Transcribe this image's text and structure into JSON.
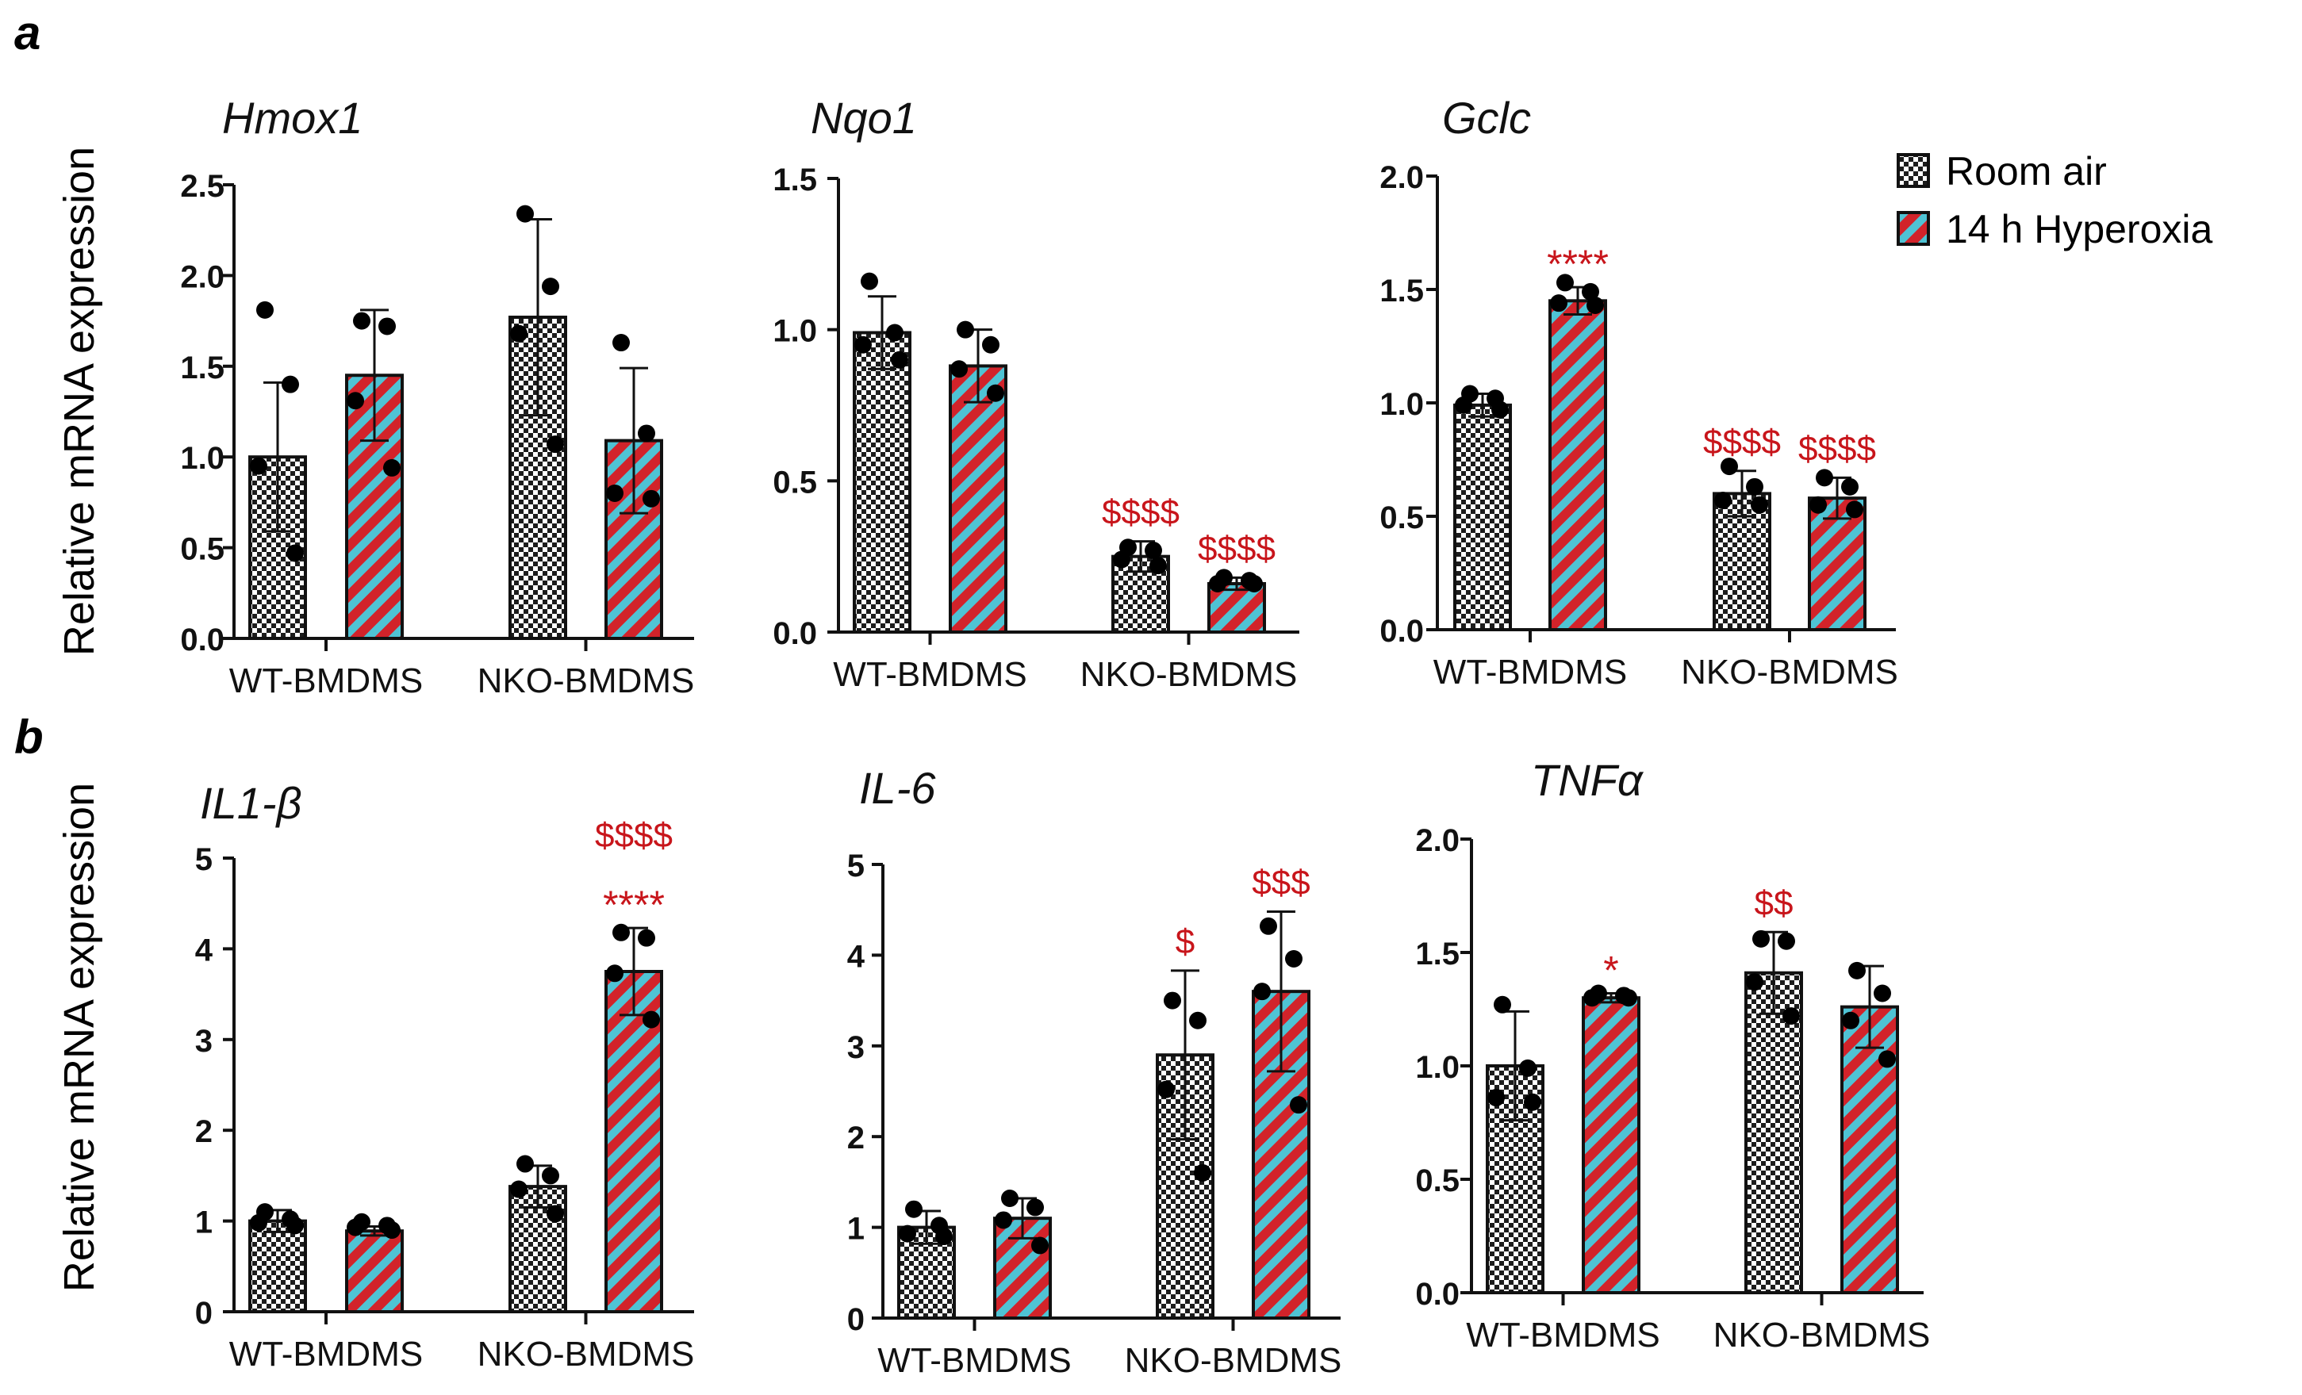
{
  "panel_letters": {
    "a": "a",
    "b": "b"
  },
  "y_axis_label": "Relative mRNA expression",
  "legend": [
    {
      "label": "Room air",
      "pattern": "checker"
    },
    {
      "label": "14 h Hyperoxia",
      "pattern": "stripe"
    }
  ],
  "colors": {
    "checker_dark": "#1c1c1c",
    "checker_light": "#ffffff",
    "stripe_red": "#d2232a",
    "stripe_cyan": "#4fc3d4",
    "annotation_red": "#c8151b",
    "axis": "#111111",
    "dot": "#000000"
  },
  "chart_data": [
    {
      "id": "hmox1",
      "type": "bar",
      "title": "Hmox1",
      "categories": [
        "WT-BMDMS",
        "NKO-BMDMS"
      ],
      "ylim": [
        0,
        2.5
      ],
      "yticks": [
        "0.0",
        "0.5",
        "1.0",
        "1.5",
        "2.0",
        "2.5"
      ],
      "series": [
        {
          "name": "Room air",
          "values": [
            1.0,
            1.77
          ],
          "err": [
            0.41,
            0.54
          ],
          "points": [
            [
              1.81,
              1.4,
              0.95,
              0.47
            ],
            [
              2.34,
              1.94,
              1.68,
              1.07
            ]
          ],
          "annotations": [
            [],
            []
          ]
        },
        {
          "name": "14 h Hyperoxia",
          "values": [
            1.45,
            1.09
          ],
          "err": [
            0.36,
            0.4
          ],
          "points": [
            [
              1.75,
              1.72,
              1.31,
              0.94
            ],
            [
              1.63,
              1.13,
              0.8,
              0.77
            ]
          ],
          "annotations": [
            [],
            []
          ]
        }
      ]
    },
    {
      "id": "nqo1",
      "type": "bar",
      "title": "Nqo1",
      "categories": [
        "WT-BMDMS",
        "NKO-BMDMS"
      ],
      "ylim": [
        0,
        1.5
      ],
      "yticks": [
        "0.0",
        "0.5",
        "1.0",
        "1.5"
      ],
      "series": [
        {
          "name": "Room air",
          "values": [
            0.99,
            0.25
          ],
          "err": [
            0.12,
            0.05
          ],
          "points": [
            [
              1.16,
              0.99,
              0.95,
              0.9
            ],
            [
              0.28,
              0.27,
              0.24,
              0.22
            ]
          ],
          "annotations": [
            [],
            [
              "$$$$"
            ]
          ]
        },
        {
          "name": "14 h Hyperoxia",
          "values": [
            0.88,
            0.16
          ],
          "err": [
            0.12,
            0.02
          ],
          "points": [
            [
              1.0,
              0.95,
              0.87,
              0.79
            ],
            [
              0.18,
              0.17,
              0.16,
              0.16
            ]
          ],
          "annotations": [
            [],
            [
              "$$$$"
            ]
          ]
        }
      ]
    },
    {
      "id": "gclc",
      "type": "bar",
      "title": "Gclc",
      "categories": [
        "WT-BMDMS",
        "NKO-BMDMS"
      ],
      "ylim": [
        0,
        2.0
      ],
      "yticks": [
        "0.0",
        "0.5",
        "1.0",
        "1.5",
        "2.0"
      ],
      "series": [
        {
          "name": "Room air",
          "values": [
            0.99,
            0.6
          ],
          "err": [
            0.05,
            0.1
          ],
          "points": [
            [
              1.04,
              1.02,
              0.99,
              0.97
            ],
            [
              0.72,
              0.63,
              0.57,
              0.55
            ]
          ],
          "annotations": [
            [],
            [
              "$$$$"
            ]
          ]
        },
        {
          "name": "14 h Hyperoxia",
          "values": [
            1.45,
            0.58
          ],
          "err": [
            0.06,
            0.09
          ],
          "points": [
            [
              1.53,
              1.49,
              1.44,
              1.43
            ],
            [
              0.67,
              0.63,
              0.55,
              0.53
            ]
          ],
          "annotations": [
            [
              "****"
            ],
            [
              "$$$$"
            ]
          ]
        }
      ]
    },
    {
      "id": "il1b",
      "type": "bar",
      "title": "IL1-β",
      "categories": [
        "WT-BMDMS",
        "NKO-BMDMS"
      ],
      "ylim": [
        0,
        5
      ],
      "yticks": [
        "0",
        "1",
        "2",
        "3",
        "4",
        "5"
      ],
      "series": [
        {
          "name": "Room air",
          "values": [
            1.0,
            1.38
          ],
          "err": [
            0.12,
            0.23
          ],
          "points": [
            [
              1.1,
              1.02,
              0.98,
              0.95
            ],
            [
              1.63,
              1.5,
              1.35,
              1.08
            ]
          ],
          "annotations": [
            [],
            []
          ]
        },
        {
          "name": "14 h Hyperoxia",
          "values": [
            0.89,
            3.75
          ],
          "err": [
            0.05,
            0.48
          ],
          "points": [
            [
              0.99,
              0.95,
              0.93,
              0.9
            ],
            [
              4.18,
              4.12,
              3.73,
              3.22
            ]
          ],
          "annotations": [
            [],
            [
              "$$$$",
              "****"
            ]
          ]
        }
      ]
    },
    {
      "id": "il6",
      "type": "bar",
      "title": "IL-6",
      "categories": [
        "WT-BMDMS",
        "NKO-BMDMS"
      ],
      "ylim": [
        0,
        5
      ],
      "yticks": [
        "0",
        "1",
        "2",
        "3",
        "4",
        "5"
      ],
      "series": [
        {
          "name": "Room air",
          "values": [
            1.0,
            2.9
          ],
          "err": [
            0.18,
            0.93
          ],
          "points": [
            [
              1.2,
              1.02,
              0.93,
              0.9
            ],
            [
              3.5,
              3.28,
              2.52,
              1.6
            ]
          ],
          "annotations": [
            [],
            [
              "$"
            ]
          ]
        },
        {
          "name": "14 h Hyperoxia",
          "values": [
            1.1,
            3.6
          ],
          "err": [
            0.22,
            0.88
          ],
          "points": [
            [
              1.32,
              1.22,
              1.08,
              0.8
            ],
            [
              4.32,
              3.96,
              3.6,
              2.35
            ]
          ],
          "annotations": [
            [],
            [
              "$$$"
            ]
          ]
        }
      ]
    },
    {
      "id": "tnfa",
      "type": "bar",
      "title": "TNFα",
      "categories": [
        "WT-BMDMS",
        "NKO-BMDMS"
      ],
      "ylim": [
        0,
        2.0
      ],
      "yticks": [
        "0.0",
        "0.5",
        "1.0",
        "1.5",
        "2.0"
      ],
      "series": [
        {
          "name": "Room air",
          "values": [
            1.0,
            1.41
          ],
          "err": [
            0.24,
            0.18
          ],
          "points": [
            [
              1.27,
              0.99,
              0.86,
              0.84
            ],
            [
              1.56,
              1.55,
              1.37,
              1.22
            ]
          ],
          "annotations": [
            [],
            [
              "$$"
            ]
          ]
        },
        {
          "name": "14 h Hyperoxia",
          "values": [
            1.3,
            1.26
          ],
          "err": [
            0.02,
            0.18
          ],
          "points": [
            [
              1.32,
              1.31,
              1.3,
              1.3
            ],
            [
              1.42,
              1.32,
              1.2,
              1.03
            ]
          ],
          "annotations": [
            [
              "*"
            ],
            []
          ]
        }
      ]
    }
  ]
}
